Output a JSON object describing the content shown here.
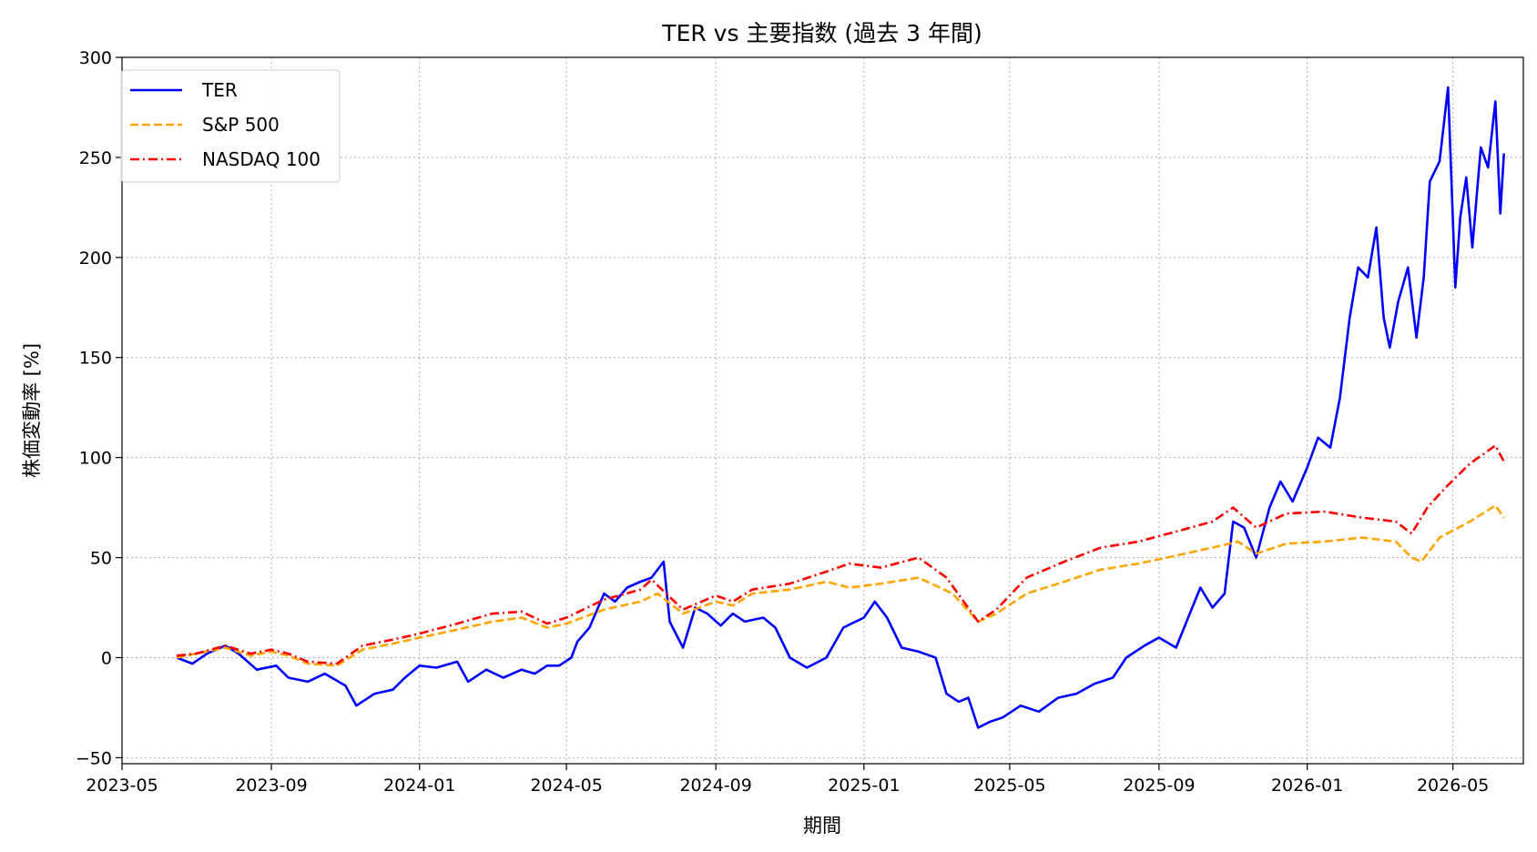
{
  "chart_data": {
    "type": "line",
    "title": "TER vs 主要指数 (過去 3 年間)",
    "xlabel": "期間",
    "ylabel": "株価変動率 [%]",
    "xlim": [
      "2023-05-01",
      "2026-06-28"
    ],
    "ylim": [
      -53,
      300
    ],
    "grid": true,
    "legend_position": "top-left",
    "x_ticks": [
      "2023-05",
      "2023-09",
      "2024-01",
      "2024-05",
      "2024-09",
      "2025-01",
      "2025-05",
      "2025-09",
      "2026-01",
      "2026-05"
    ],
    "y_ticks": [
      -50,
      0,
      50,
      100,
      150,
      200,
      250,
      300
    ],
    "series": [
      {
        "name": "TER",
        "color": "#0000ff",
        "style": "solid",
        "points": [
          [
            "2023-06-15",
            0
          ],
          [
            "2023-06-28",
            -3
          ],
          [
            "2023-07-10",
            2
          ],
          [
            "2023-07-25",
            6
          ],
          [
            "2023-08-05",
            2
          ],
          [
            "2023-08-20",
            -6
          ],
          [
            "2023-09-05",
            -4
          ],
          [
            "2023-09-15",
            -10
          ],
          [
            "2023-10-01",
            -12
          ],
          [
            "2023-10-15",
            -8
          ],
          [
            "2023-11-01",
            -14
          ],
          [
            "2023-11-10",
            -24
          ],
          [
            "2023-11-25",
            -18
          ],
          [
            "2023-12-10",
            -16
          ],
          [
            "2023-12-20",
            -10
          ],
          [
            "2024-01-01",
            -4
          ],
          [
            "2024-01-15",
            -5
          ],
          [
            "2024-02-01",
            -2
          ],
          [
            "2024-02-10",
            -12
          ],
          [
            "2024-02-25",
            -6
          ],
          [
            "2024-03-10",
            -10
          ],
          [
            "2024-03-25",
            -6
          ],
          [
            "2024-04-05",
            -8
          ],
          [
            "2024-04-15",
            -4
          ],
          [
            "2024-04-25",
            -4
          ],
          [
            "2024-05-05",
            0
          ],
          [
            "2024-05-10",
            8
          ],
          [
            "2024-05-20",
            15
          ],
          [
            "2024-06-01",
            32
          ],
          [
            "2024-06-10",
            28
          ],
          [
            "2024-06-20",
            35
          ],
          [
            "2024-07-01",
            38
          ],
          [
            "2024-07-10",
            40
          ],
          [
            "2024-07-20",
            48
          ],
          [
            "2024-07-25",
            18
          ],
          [
            "2024-08-05",
            5
          ],
          [
            "2024-08-15",
            25
          ],
          [
            "2024-08-25",
            22
          ],
          [
            "2024-09-05",
            16
          ],
          [
            "2024-09-15",
            22
          ],
          [
            "2024-09-25",
            18
          ],
          [
            "2024-10-10",
            20
          ],
          [
            "2024-10-20",
            15
          ],
          [
            "2024-11-01",
            0
          ],
          [
            "2024-11-15",
            -5
          ],
          [
            "2024-12-01",
            0
          ],
          [
            "2024-12-15",
            15
          ],
          [
            "2025-01-01",
            20
          ],
          [
            "2025-01-10",
            28
          ],
          [
            "2025-01-20",
            20
          ],
          [
            "2025-02-01",
            5
          ],
          [
            "2025-02-15",
            3
          ],
          [
            "2025-03-01",
            0
          ],
          [
            "2025-03-10",
            -18
          ],
          [
            "2025-03-20",
            -22
          ],
          [
            "2025-03-28",
            -20
          ],
          [
            "2025-04-05",
            -35
          ],
          [
            "2025-04-15",
            -32
          ],
          [
            "2025-04-25",
            -30
          ],
          [
            "2025-05-10",
            -24
          ],
          [
            "2025-05-25",
            -27
          ],
          [
            "2025-06-10",
            -20
          ],
          [
            "2025-06-25",
            -18
          ],
          [
            "2025-07-10",
            -13
          ],
          [
            "2025-07-25",
            -10
          ],
          [
            "2025-08-05",
            0
          ],
          [
            "2025-08-20",
            6
          ],
          [
            "2025-09-01",
            10
          ],
          [
            "2025-09-15",
            5
          ],
          [
            "2025-09-25",
            20
          ],
          [
            "2025-10-05",
            35
          ],
          [
            "2025-10-15",
            25
          ],
          [
            "2025-10-25",
            32
          ],
          [
            "2025-11-01",
            68
          ],
          [
            "2025-11-10",
            65
          ],
          [
            "2025-11-20",
            50
          ],
          [
            "2025-12-01",
            75
          ],
          [
            "2025-12-10",
            88
          ],
          [
            "2025-12-20",
            78
          ],
          [
            "2026-01-01",
            95
          ],
          [
            "2026-01-10",
            110
          ],
          [
            "2026-01-20",
            105
          ],
          [
            "2026-01-28",
            130
          ],
          [
            "2026-02-05",
            170
          ],
          [
            "2026-02-12",
            195
          ],
          [
            "2026-02-20",
            190
          ],
          [
            "2026-02-27",
            215
          ],
          [
            "2026-03-05",
            170
          ],
          [
            "2026-03-10",
            155
          ],
          [
            "2026-03-17",
            178
          ],
          [
            "2026-03-25",
            195
          ],
          [
            "2026-04-01",
            160
          ],
          [
            "2026-04-07",
            190
          ],
          [
            "2026-04-12",
            238
          ],
          [
            "2026-04-20",
            248
          ],
          [
            "2026-04-27",
            285
          ],
          [
            "2026-05-03",
            185
          ],
          [
            "2026-05-07",
            220
          ],
          [
            "2026-05-12",
            240
          ],
          [
            "2026-05-17",
            205
          ],
          [
            "2026-05-24",
            255
          ],
          [
            "2026-05-30",
            245
          ],
          [
            "2026-06-05",
            278
          ],
          [
            "2026-06-09",
            222
          ],
          [
            "2026-06-12",
            252
          ]
        ]
      },
      {
        "name": "S&P 500",
        "color": "#ffa500",
        "style": "dashed",
        "points": [
          [
            "2023-06-15",
            0
          ],
          [
            "2023-07-01",
            2
          ],
          [
            "2023-07-25",
            5
          ],
          [
            "2023-08-15",
            1
          ],
          [
            "2023-09-01",
            3
          ],
          [
            "2023-09-15",
            1
          ],
          [
            "2023-10-01",
            -3
          ],
          [
            "2023-10-25",
            -4
          ],
          [
            "2023-11-15",
            4
          ],
          [
            "2023-12-10",
            7
          ],
          [
            "2024-01-01",
            10
          ],
          [
            "2024-02-01",
            14
          ],
          [
            "2024-03-01",
            18
          ],
          [
            "2024-03-25",
            20
          ],
          [
            "2024-04-15",
            15
          ],
          [
            "2024-05-01",
            17
          ],
          [
            "2024-06-01",
            24
          ],
          [
            "2024-07-01",
            28
          ],
          [
            "2024-07-15",
            32
          ],
          [
            "2024-08-05",
            22
          ],
          [
            "2024-09-01",
            28
          ],
          [
            "2024-09-15",
            26
          ],
          [
            "2024-10-01",
            32
          ],
          [
            "2024-11-01",
            34
          ],
          [
            "2024-12-01",
            38
          ],
          [
            "2024-12-20",
            35
          ],
          [
            "2025-01-15",
            37
          ],
          [
            "2025-02-15",
            40
          ],
          [
            "2025-03-15",
            32
          ],
          [
            "2025-04-05",
            18
          ],
          [
            "2025-04-20",
            22
          ],
          [
            "2025-05-15",
            32
          ],
          [
            "2025-06-15",
            38
          ],
          [
            "2025-07-15",
            44
          ],
          [
            "2025-08-15",
            47
          ],
          [
            "2025-09-15",
            51
          ],
          [
            "2025-10-15",
            55
          ],
          [
            "2025-11-05",
            58
          ],
          [
            "2025-11-20",
            52
          ],
          [
            "2025-12-15",
            57
          ],
          [
            "2026-01-15",
            58
          ],
          [
            "2026-02-15",
            60
          ],
          [
            "2026-03-15",
            58
          ],
          [
            "2026-03-28",
            50
          ],
          [
            "2026-04-05",
            48
          ],
          [
            "2026-04-20",
            60
          ],
          [
            "2026-05-15",
            68
          ],
          [
            "2026-06-05",
            76
          ],
          [
            "2026-06-12",
            70
          ]
        ]
      },
      {
        "name": "NASDAQ 100",
        "color": "#ff0000",
        "style": "dashdot",
        "points": [
          [
            "2023-06-15",
            1
          ],
          [
            "2023-07-01",
            2
          ],
          [
            "2023-07-25",
            6
          ],
          [
            "2023-08-15",
            2
          ],
          [
            "2023-09-01",
            4
          ],
          [
            "2023-09-15",
            2
          ],
          [
            "2023-10-01",
            -2
          ],
          [
            "2023-10-25",
            -3
          ],
          [
            "2023-11-15",
            6
          ],
          [
            "2023-12-10",
            9
          ],
          [
            "2024-01-01",
            12
          ],
          [
            "2024-02-01",
            17
          ],
          [
            "2024-03-01",
            22
          ],
          [
            "2024-03-25",
            23
          ],
          [
            "2024-04-15",
            17
          ],
          [
            "2024-05-01",
            20
          ],
          [
            "2024-06-01",
            29
          ],
          [
            "2024-07-01",
            34
          ],
          [
            "2024-07-10",
            39
          ],
          [
            "2024-08-05",
            24
          ],
          [
            "2024-09-01",
            31
          ],
          [
            "2024-09-15",
            28
          ],
          [
            "2024-10-01",
            34
          ],
          [
            "2024-11-01",
            37
          ],
          [
            "2024-12-01",
            43
          ],
          [
            "2024-12-20",
            47
          ],
          [
            "2025-01-15",
            45
          ],
          [
            "2025-02-15",
            50
          ],
          [
            "2025-03-10",
            40
          ],
          [
            "2025-04-05",
            18
          ],
          [
            "2025-04-20",
            24
          ],
          [
            "2025-05-15",
            40
          ],
          [
            "2025-06-15",
            48
          ],
          [
            "2025-07-15",
            55
          ],
          [
            "2025-08-15",
            58
          ],
          [
            "2025-09-15",
            63
          ],
          [
            "2025-10-15",
            68
          ],
          [
            "2025-11-01",
            75
          ],
          [
            "2025-11-20",
            65
          ],
          [
            "2025-12-15",
            72
          ],
          [
            "2026-01-15",
            73
          ],
          [
            "2026-02-15",
            70
          ],
          [
            "2026-03-15",
            68
          ],
          [
            "2026-03-28",
            62
          ],
          [
            "2026-04-10",
            75
          ],
          [
            "2026-04-25",
            85
          ],
          [
            "2026-05-15",
            97
          ],
          [
            "2026-06-05",
            106
          ],
          [
            "2026-06-12",
            98
          ]
        ]
      }
    ]
  }
}
